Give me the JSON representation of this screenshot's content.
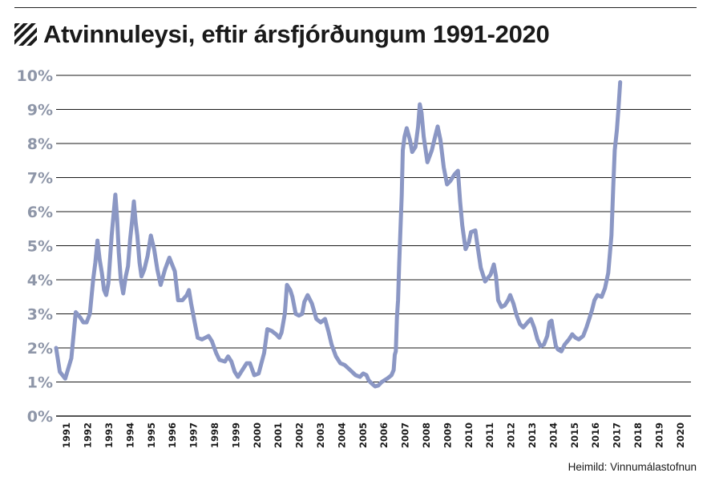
{
  "title": "Atvinnuleysi, eftir ársfjórðungum 1991-2020",
  "source": "Heimild: Vinnumálastofnun",
  "title_icon": "hatched-square-icon",
  "colors": {
    "line": "#8b97c4",
    "grid": "#1a1a1a",
    "ytick": "#8e96a8",
    "text": "#1a1a1a"
  },
  "chart_data": {
    "type": "line",
    "title": "Atvinnuleysi, eftir ársfjórðungum 1991-2020",
    "xlabel": "",
    "ylabel": "",
    "ylim": [
      0,
      10
    ],
    "grid": true,
    "y_ticks": [
      "0%",
      "1%",
      "2%",
      "3%",
      "4%",
      "5%",
      "6%",
      "7%",
      "8%",
      "9%",
      "10%"
    ],
    "x_ticks": [
      "1991",
      "1992",
      "1993",
      "1994",
      "1995",
      "1996",
      "1997",
      "1998",
      "1999",
      "2000",
      "2001",
      "2002",
      "2003",
      "2004",
      "2005",
      "2006",
      "2007",
      "2008",
      "2009",
      "2010",
      "2011",
      "2012",
      "2013",
      "2014",
      "2015",
      "2016",
      "2017",
      "2018",
      "2019",
      "2020"
    ],
    "series": [
      {
        "values": [
          [
            1991.0,
            2.0
          ],
          [
            1991.17,
            1.3
          ],
          [
            1991.42,
            1.1
          ],
          [
            1991.7,
            1.7
          ],
          [
            1991.9,
            3.05
          ],
          [
            1992.1,
            2.9
          ],
          [
            1992.25,
            2.75
          ],
          [
            1992.4,
            2.75
          ],
          [
            1992.55,
            3.0
          ],
          [
            1992.7,
            4.0
          ],
          [
            1992.8,
            4.5
          ],
          [
            1992.9,
            5.15
          ],
          [
            1993.0,
            4.6
          ],
          [
            1993.1,
            4.2
          ],
          [
            1993.2,
            3.7
          ],
          [
            1993.3,
            3.55
          ],
          [
            1993.4,
            3.9
          ],
          [
            1993.55,
            5.3
          ],
          [
            1993.65,
            6.0
          ],
          [
            1993.72,
            6.5
          ],
          [
            1993.8,
            5.8
          ],
          [
            1993.88,
            4.8
          ],
          [
            1993.97,
            4.0
          ],
          [
            1994.08,
            3.6
          ],
          [
            1994.2,
            4.1
          ],
          [
            1994.3,
            4.4
          ],
          [
            1994.4,
            5.2
          ],
          [
            1994.5,
            5.8
          ],
          [
            1994.57,
            6.3
          ],
          [
            1994.65,
            5.7
          ],
          [
            1994.73,
            5.3
          ],
          [
            1994.83,
            4.5
          ],
          [
            1994.92,
            4.1
          ],
          [
            1995.05,
            4.3
          ],
          [
            1995.2,
            4.7
          ],
          [
            1995.35,
            5.3
          ],
          [
            1995.5,
            4.9
          ],
          [
            1995.65,
            4.3
          ],
          [
            1995.8,
            3.85
          ],
          [
            1996.0,
            4.3
          ],
          [
            1996.2,
            4.65
          ],
          [
            1996.45,
            4.25
          ],
          [
            1996.6,
            3.4
          ],
          [
            1996.8,
            3.4
          ],
          [
            1997.0,
            3.55
          ],
          [
            1997.1,
            3.7
          ],
          [
            1997.2,
            3.3
          ],
          [
            1997.35,
            2.8
          ],
          [
            1997.5,
            2.3
          ],
          [
            1997.7,
            2.25
          ],
          [
            1997.85,
            2.3
          ],
          [
            1998.0,
            2.35
          ],
          [
            1998.15,
            2.2
          ],
          [
            1998.35,
            1.85
          ],
          [
            1998.5,
            1.65
          ],
          [
            1998.75,
            1.6
          ],
          [
            1998.9,
            1.75
          ],
          [
            1999.05,
            1.6
          ],
          [
            1999.2,
            1.3
          ],
          [
            1999.35,
            1.15
          ],
          [
            1999.5,
            1.3
          ],
          [
            1999.75,
            1.55
          ],
          [
            1999.9,
            1.55
          ],
          [
            2000.1,
            1.2
          ],
          [
            2000.3,
            1.25
          ],
          [
            2000.55,
            1.85
          ],
          [
            2000.7,
            2.55
          ],
          [
            2000.9,
            2.5
          ],
          [
            2001.1,
            2.4
          ],
          [
            2001.25,
            2.3
          ],
          [
            2001.35,
            2.45
          ],
          [
            2001.5,
            3.0
          ],
          [
            2001.6,
            3.85
          ],
          [
            2001.75,
            3.7
          ],
          [
            2001.85,
            3.5
          ],
          [
            2002.0,
            3.0
          ],
          [
            2002.15,
            2.95
          ],
          [
            2002.3,
            3.0
          ],
          [
            2002.4,
            3.35
          ],
          [
            2002.55,
            3.55
          ],
          [
            2002.75,
            3.3
          ],
          [
            2002.95,
            2.85
          ],
          [
            2003.15,
            2.75
          ],
          [
            2003.35,
            2.85
          ],
          [
            2003.5,
            2.5
          ],
          [
            2003.65,
            2.1
          ],
          [
            2003.85,
            1.75
          ],
          [
            2004.05,
            1.55
          ],
          [
            2004.25,
            1.5
          ],
          [
            2004.5,
            1.35
          ],
          [
            2004.75,
            1.2
          ],
          [
            2004.95,
            1.15
          ],
          [
            2005.1,
            1.25
          ],
          [
            2005.25,
            1.2
          ],
          [
            2005.35,
            1.05
          ],
          [
            2005.5,
            0.95
          ],
          [
            2005.65,
            0.87
          ],
          [
            2005.8,
            0.9
          ],
          [
            2005.95,
            1.0
          ],
          [
            2006.2,
            1.1
          ],
          [
            2006.4,
            1.2
          ],
          [
            2006.5,
            1.35
          ],
          [
            2006.55,
            1.8
          ],
          [
            2006.6,
            1.9
          ],
          [
            2006.65,
            2.9
          ],
          [
            2006.7,
            3.4
          ],
          [
            2006.75,
            4.4
          ],
          [
            2006.8,
            5.3
          ],
          [
            2006.87,
            6.5
          ],
          [
            2006.92,
            7.8
          ],
          [
            2007.0,
            8.2
          ],
          [
            2007.1,
            8.45
          ],
          [
            2007.25,
            8.1
          ],
          [
            2007.35,
            7.75
          ],
          [
            2007.5,
            7.9
          ],
          [
            2007.62,
            8.5
          ],
          [
            2007.7,
            9.15
          ],
          [
            2007.78,
            8.9
          ],
          [
            2007.88,
            8.2
          ],
          [
            2008.05,
            7.45
          ],
          [
            2008.25,
            7.8
          ],
          [
            2008.4,
            8.2
          ],
          [
            2008.52,
            8.5
          ],
          [
            2008.65,
            8.1
          ],
          [
            2008.8,
            7.3
          ],
          [
            2008.95,
            6.8
          ],
          [
            2009.1,
            6.9
          ],
          [
            2009.3,
            7.1
          ],
          [
            2009.45,
            7.2
          ],
          [
            2009.55,
            6.3
          ],
          [
            2009.65,
            5.6
          ],
          [
            2009.8,
            4.9
          ],
          [
            2009.95,
            5.1
          ],
          [
            2010.05,
            5.4
          ],
          [
            2010.25,
            5.45
          ],
          [
            2010.35,
            5.0
          ],
          [
            2010.5,
            4.35
          ],
          [
            2010.7,
            3.95
          ],
          [
            2010.95,
            4.15
          ],
          [
            2011.1,
            4.45
          ],
          [
            2011.2,
            4.1
          ],
          [
            2011.3,
            3.4
          ],
          [
            2011.45,
            3.2
          ],
          [
            2011.6,
            3.25
          ],
          [
            2011.75,
            3.4
          ],
          [
            2011.85,
            3.55
          ],
          [
            2012.0,
            3.3
          ],
          [
            2012.15,
            2.95
          ],
          [
            2012.3,
            2.7
          ],
          [
            2012.45,
            2.6
          ],
          [
            2012.65,
            2.75
          ],
          [
            2012.8,
            2.85
          ],
          [
            2012.95,
            2.6
          ],
          [
            2013.1,
            2.25
          ],
          [
            2013.25,
            2.05
          ],
          [
            2013.4,
            2.1
          ],
          [
            2013.55,
            2.35
          ],
          [
            2013.65,
            2.75
          ],
          [
            2013.75,
            2.8
          ],
          [
            2013.85,
            2.4
          ],
          [
            2013.95,
            2.05
          ],
          [
            2014.05,
            1.95
          ],
          [
            2014.2,
            1.9
          ],
          [
            2014.35,
            2.1
          ],
          [
            2014.55,
            2.25
          ],
          [
            2014.7,
            2.4
          ],
          [
            2014.85,
            2.3
          ],
          [
            2015.0,
            2.25
          ],
          [
            2015.2,
            2.35
          ],
          [
            2015.35,
            2.6
          ],
          [
            2015.5,
            2.9
          ],
          [
            2015.6,
            3.1
          ],
          [
            2015.72,
            3.4
          ],
          [
            2015.85,
            3.55
          ],
          [
            2016.05,
            3.5
          ],
          [
            2016.2,
            3.75
          ],
          [
            2016.35,
            4.2
          ],
          [
            2016.5,
            5.3
          ],
          [
            2016.58,
            6.7
          ],
          [
            2016.65,
            7.8
          ],
          [
            2016.75,
            8.4
          ],
          [
            2016.82,
            9.0
          ],
          [
            2016.9,
            9.8
          ]
        ]
      }
    ]
  }
}
